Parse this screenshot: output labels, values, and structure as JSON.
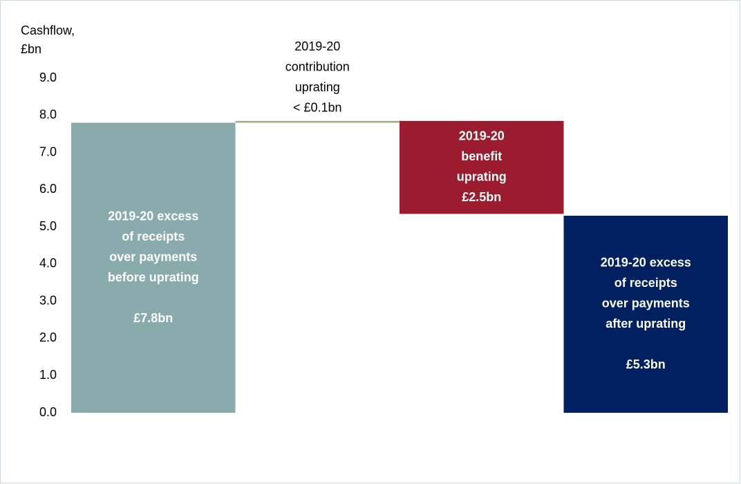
{
  "chart_data": {
    "type": "waterfall",
    "y_label": [
      "Cashflow,",
      "£bn"
    ],
    "measure": [
      "total",
      "increase",
      "decrease",
      "total"
    ],
    "values": [
      7.8,
      0.05,
      2.5,
      5.3
    ],
    "value_labels": [
      "£7.8bn",
      "< £0.1bn",
      "£2.5bn",
      "£5.3bn"
    ],
    "labels": [
      [
        "2019-20 excess",
        "of receipts",
        "over payments",
        "before uprating"
      ],
      [
        "2019-20",
        "contribution",
        "uprating"
      ],
      [
        "2019-20",
        "benefit",
        "uprating"
      ],
      [
        "2019-20 excess",
        "of receipts",
        "over payments",
        "after uprating"
      ]
    ],
    "colors": [
      "#8aabab",
      "#a8b078",
      "#9b1c2e",
      "#002060"
    ],
    "ylim": [
      0,
      9
    ],
    "yticks": [
      {
        "value": 0,
        "label": "0.0"
      },
      {
        "value": 1,
        "label": "1.0"
      },
      {
        "value": 2,
        "label": "2.0"
      },
      {
        "value": 3,
        "label": "3.0"
      },
      {
        "value": 4,
        "label": "4.0"
      },
      {
        "value": 5,
        "label": "5.0"
      },
      {
        "value": 6,
        "label": "6.0"
      },
      {
        "value": 7,
        "label": "7.0"
      },
      {
        "value": 8,
        "label": "8.0"
      },
      {
        "value": 9,
        "label": "9.0"
      }
    ]
  }
}
